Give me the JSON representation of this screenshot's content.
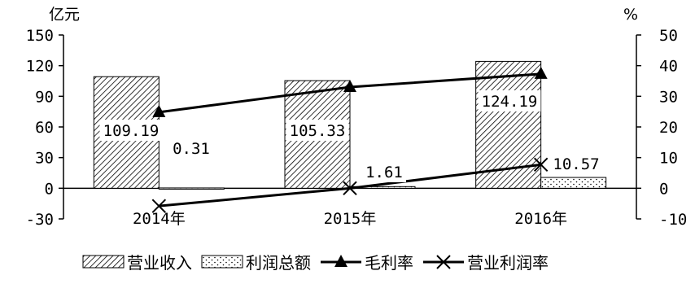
{
  "chart_data": {
    "type": "bar",
    "categories": [
      "2014年",
      "2015年",
      "2016年"
    ],
    "left_axis": {
      "unit": "亿元",
      "ylim": [
        -30,
        150
      ],
      "ticks": [
        "-30",
        "0",
        "30",
        "60",
        "90",
        "120",
        "150"
      ]
    },
    "right_axis": {
      "unit": "%",
      "ylim": [
        -10,
        50
      ],
      "ticks": [
        "-10",
        "0",
        "10",
        "20",
        "30",
        "40",
        "50"
      ]
    },
    "series": [
      {
        "name": "营业收入",
        "kind": "bar",
        "axis": "left",
        "pattern": "diagonal-hatch",
        "values": [
          109.19,
          105.33,
          124.19
        ],
        "labels": [
          "109.19",
          "105.33",
          "124.19"
        ]
      },
      {
        "name": "利润总额",
        "kind": "bar",
        "axis": "left",
        "pattern": "dotted",
        "values": [
          0.31,
          1.61,
          10.57
        ],
        "labels": [
          "0.31",
          "1.61",
          "10.57"
        ]
      },
      {
        "name": "毛利率",
        "kind": "line",
        "axis": "right",
        "marker": "triangle",
        "values": [
          24.8,
          33.0,
          37.3
        ]
      },
      {
        "name": "营业利润率",
        "kind": "line",
        "axis": "right",
        "marker": "x",
        "values": [
          -5.8,
          0.0,
          7.7
        ]
      }
    ],
    "grid": false,
    "legend_position": "bottom",
    "colors": {
      "ink": "#000000",
      "background": "#ffffff"
    }
  }
}
